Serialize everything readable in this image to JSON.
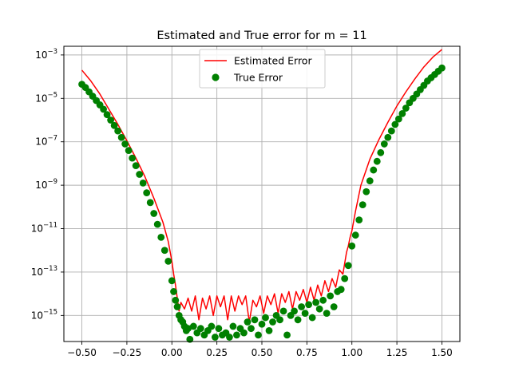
{
  "chart_data": {
    "type": "line",
    "title": "Estimated and True error for m = 11",
    "xlabel": "",
    "ylabel": "",
    "yscale": "log",
    "xlim": [
      -0.6,
      1.6
    ],
    "ylim_log10": [
      -16.2,
      -2.6
    ],
    "grid": true,
    "legend_position": "upper center",
    "x_ticks": [
      {
        "value": -0.5,
        "label": "−0.50"
      },
      {
        "value": -0.25,
        "label": "−0.25"
      },
      {
        "value": 0.0,
        "label": "0.00"
      },
      {
        "value": 0.25,
        "label": "0.25"
      },
      {
        "value": 0.5,
        "label": "0.50"
      },
      {
        "value": 0.75,
        "label": "0.75"
      },
      {
        "value": 1.0,
        "label": "1.00"
      },
      {
        "value": 1.25,
        "label": "1.25"
      },
      {
        "value": 1.5,
        "label": "1.50"
      }
    ],
    "y_ticks": [
      {
        "exp": -3,
        "label": "10−3"
      },
      {
        "exp": -5,
        "label": "10−5"
      },
      {
        "exp": -7,
        "label": "10−7"
      },
      {
        "exp": -9,
        "label": "10−9"
      },
      {
        "exp": -11,
        "label": "10−11"
      },
      {
        "exp": -13,
        "label": "10−13"
      },
      {
        "exp": -15,
        "label": "10−15"
      }
    ],
    "series": [
      {
        "name": "Estimated Error",
        "kind": "line",
        "color": "#ff0000",
        "x": [
          -0.5,
          -0.45,
          -0.4,
          -0.35,
          -0.3,
          -0.25,
          -0.2,
          -0.15,
          -0.1,
          -0.05,
          -0.02,
          0.0,
          0.01,
          0.02,
          0.03,
          0.04,
          0.05,
          0.07,
          0.09,
          0.11,
          0.13,
          0.15,
          0.17,
          0.19,
          0.21,
          0.23,
          0.25,
          0.27,
          0.29,
          0.31,
          0.33,
          0.35,
          0.37,
          0.39,
          0.41,
          0.43,
          0.45,
          0.47,
          0.49,
          0.51,
          0.53,
          0.55,
          0.57,
          0.59,
          0.61,
          0.63,
          0.65,
          0.67,
          0.69,
          0.71,
          0.73,
          0.75,
          0.77,
          0.79,
          0.81,
          0.83,
          0.85,
          0.87,
          0.89,
          0.91,
          0.93,
          0.95,
          0.97,
          0.98,
          0.99,
          1.0,
          1.02,
          1.05,
          1.1,
          1.15,
          1.2,
          1.25,
          1.3,
          1.35,
          1.4,
          1.45,
          1.5
        ],
        "log10_y": [
          -3.7,
          -4.2,
          -4.8,
          -5.5,
          -6.2,
          -6.95,
          -7.75,
          -8.6,
          -9.6,
          -10.7,
          -11.6,
          -12.5,
          -13.1,
          -13.6,
          -14.2,
          -14.8,
          -14.4,
          -14.7,
          -14.2,
          -14.8,
          -14.1,
          -15.2,
          -14.2,
          -14.7,
          -14.1,
          -15.0,
          -14.1,
          -14.6,
          -14.1,
          -15.2,
          -14.1,
          -14.8,
          -14.1,
          -14.5,
          -14.1,
          -15.3,
          -14.3,
          -14.6,
          -14.1,
          -14.9,
          -14.1,
          -14.5,
          -14.0,
          -14.9,
          -14.0,
          -14.4,
          -13.9,
          -14.7,
          -13.9,
          -14.3,
          -13.8,
          -14.4,
          -13.7,
          -14.3,
          -13.6,
          -14.1,
          -13.4,
          -13.9,
          -13.3,
          -13.7,
          -12.9,
          -13.1,
          -12.1,
          -11.8,
          -11.4,
          -11.1,
          -10.2,
          -9.0,
          -7.8,
          -6.9,
          -6.1,
          -5.35,
          -4.7,
          -4.1,
          -3.55,
          -3.1,
          -2.75
        ]
      },
      {
        "name": "True Error",
        "kind": "scatter",
        "color": "#008000",
        "x": [
          -0.5,
          -0.48,
          -0.46,
          -0.44,
          -0.42,
          -0.4,
          -0.38,
          -0.36,
          -0.34,
          -0.32,
          -0.3,
          -0.28,
          -0.26,
          -0.24,
          -0.22,
          -0.2,
          -0.18,
          -0.16,
          -0.14,
          -0.12,
          -0.1,
          -0.08,
          -0.06,
          -0.04,
          -0.02,
          0.0,
          0.01,
          0.02,
          0.03,
          0.04,
          0.05,
          0.06,
          0.07,
          0.08,
          0.09,
          0.1,
          0.12,
          0.14,
          0.16,
          0.18,
          0.2,
          0.22,
          0.24,
          0.26,
          0.28,
          0.3,
          0.32,
          0.34,
          0.36,
          0.38,
          0.4,
          0.42,
          0.44,
          0.46,
          0.48,
          0.5,
          0.52,
          0.54,
          0.56,
          0.58,
          0.6,
          0.62,
          0.64,
          0.66,
          0.68,
          0.7,
          0.72,
          0.74,
          0.76,
          0.78,
          0.8,
          0.82,
          0.84,
          0.86,
          0.88,
          0.9,
          0.92,
          0.94,
          0.96,
          0.98,
          1.0,
          1.02,
          1.04,
          1.06,
          1.08,
          1.1,
          1.12,
          1.14,
          1.16,
          1.18,
          1.2,
          1.22,
          1.24,
          1.26,
          1.28,
          1.3,
          1.32,
          1.34,
          1.36,
          1.38,
          1.4,
          1.42,
          1.44,
          1.46,
          1.48,
          1.5
        ],
        "log10_y": [
          -4.35,
          -4.5,
          -4.7,
          -4.9,
          -5.1,
          -5.3,
          -5.5,
          -5.75,
          -6.0,
          -6.25,
          -6.5,
          -6.8,
          -7.1,
          -7.4,
          -7.75,
          -8.1,
          -8.5,
          -8.9,
          -9.35,
          -9.8,
          -10.3,
          -10.8,
          -11.4,
          -12.0,
          -12.5,
          -13.4,
          -13.9,
          -14.3,
          -14.6,
          -15.0,
          -15.2,
          -15.3,
          -15.5,
          -15.7,
          -15.6,
          -16.1,
          -15.5,
          -15.8,
          -15.6,
          -15.9,
          -15.7,
          -15.5,
          -16.0,
          -15.6,
          -15.9,
          -15.8,
          -16.0,
          -15.5,
          -15.9,
          -15.6,
          -15.8,
          -15.3,
          -15.6,
          -15.2,
          -15.9,
          -15.4,
          -15.1,
          -15.7,
          -15.3,
          -15.0,
          -15.2,
          -14.8,
          -15.9,
          -15.0,
          -14.8,
          -15.2,
          -14.6,
          -14.9,
          -14.5,
          -15.1,
          -14.4,
          -14.7,
          -14.3,
          -14.9,
          -14.1,
          -14.6,
          -13.9,
          -13.8,
          -13.3,
          -12.7,
          -11.8,
          -11.3,
          -10.6,
          -9.9,
          -9.3,
          -8.8,
          -8.3,
          -7.9,
          -7.5,
          -7.1,
          -6.8,
          -6.5,
          -6.2,
          -5.95,
          -5.7,
          -5.45,
          -5.2,
          -5.0,
          -4.8,
          -4.6,
          -4.4,
          -4.2,
          -4.05,
          -3.9,
          -3.75,
          -3.6
        ]
      }
    ]
  }
}
